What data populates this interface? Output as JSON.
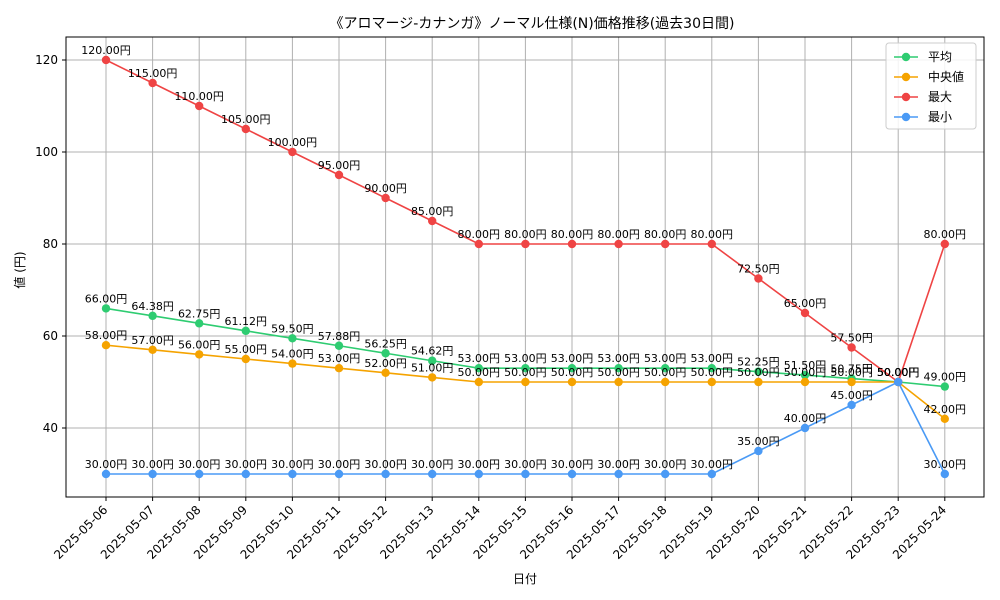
{
  "chart_data": {
    "type": "line",
    "title": "《アロマージ-カナンガ》ノーマル仕様(N)価格推移(過去30日間)",
    "xlabel": "日付",
    "ylabel": "値 (円)",
    "ylim": [
      25,
      125
    ],
    "yticks": [
      40,
      60,
      80,
      100,
      120
    ],
    "grid": true,
    "legend_position": "top-right",
    "value_suffix": "円",
    "categories": [
      "2025-05-06",
      "2025-05-07",
      "2025-05-08",
      "2025-05-09",
      "2025-05-10",
      "2025-05-11",
      "2025-05-12",
      "2025-05-13",
      "2025-05-14",
      "2025-05-15",
      "2025-05-16",
      "2025-05-17",
      "2025-05-18",
      "2025-05-19",
      "2025-05-20",
      "2025-05-21",
      "2025-05-22",
      "2025-05-23",
      "2025-05-24"
    ],
    "series": [
      {
        "name": "平均",
        "color": "#2ecc71",
        "values": [
          66.0,
          64.38,
          62.75,
          61.12,
          59.5,
          57.88,
          56.25,
          54.62,
          53.0,
          53.0,
          53.0,
          53.0,
          53.0,
          53.0,
          52.25,
          51.5,
          50.75,
          50.0,
          49.0
        ]
      },
      {
        "name": "中央値",
        "color": "#f5a300",
        "values": [
          58.0,
          57.0,
          56.0,
          55.0,
          54.0,
          53.0,
          52.0,
          51.0,
          50.0,
          50.0,
          50.0,
          50.0,
          50.0,
          50.0,
          50.0,
          50.0,
          50.0,
          50.0,
          42.0
        ]
      },
      {
        "name": "最大",
        "color": "#ef4444",
        "values": [
          120.0,
          115.0,
          110.0,
          105.0,
          100.0,
          95.0,
          90.0,
          85.0,
          80.0,
          80.0,
          80.0,
          80.0,
          80.0,
          80.0,
          72.5,
          65.0,
          57.5,
          50.0,
          80.0
        ]
      },
      {
        "name": "最小",
        "color": "#4a9af5",
        "values": [
          30.0,
          30.0,
          30.0,
          30.0,
          30.0,
          30.0,
          30.0,
          30.0,
          30.0,
          30.0,
          30.0,
          30.0,
          30.0,
          30.0,
          35.0,
          40.0,
          45.0,
          50.0,
          30.0
        ]
      }
    ]
  }
}
